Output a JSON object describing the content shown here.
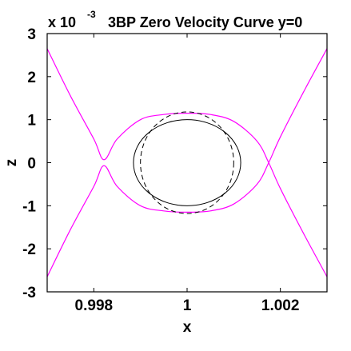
{
  "chart_data": {
    "type": "line",
    "title": "3BP Zero Velocity Curve y=0",
    "xlabel": "x",
    "ylabel": "z",
    "exponent": {
      "base": "x 10",
      "power": "-3"
    },
    "xlim": [
      0.997,
      1.003
    ],
    "ylim": [
      -3,
      3
    ],
    "x_ticks": [
      0.998,
      1,
      1.002
    ],
    "x_tick_labels": [
      "0.998",
      "1",
      "1.002"
    ],
    "y_ticks": [
      -3,
      -2,
      -1,
      0,
      1,
      2,
      3
    ],
    "y_tick_labels": [
      "-3",
      "-2",
      "-1",
      "0",
      "1",
      "2",
      "3"
    ],
    "grid": false,
    "series": [
      {
        "style": "solid-magenta",
        "color": "#ff00ff",
        "x": [
          0.997,
          0.9975,
          0.998,
          0.99822,
          0.9985,
          0.999,
          0.9995,
          1.0,
          1.0005,
          1.001,
          1.0015,
          1.00175,
          1.002,
          1.0025,
          1.003
        ],
        "y": [
          2.65,
          1.55,
          0.55,
          0.07,
          0.55,
          1.0,
          1.12,
          1.15,
          1.12,
          0.96,
          0.5,
          0.0,
          -0.6,
          -1.65,
          -2.65
        ]
      },
      {
        "style": "solid-magenta",
        "color": "#ff00ff",
        "x": [
          0.997,
          0.9975,
          0.998,
          0.99822,
          0.9985,
          0.999,
          0.9995,
          1.0,
          1.0005,
          1.001,
          1.0015,
          1.00175,
          1.002,
          1.0025,
          1.003
        ],
        "y": [
          -2.65,
          -1.55,
          -0.55,
          -0.07,
          -0.55,
          -1.0,
          -1.12,
          -1.15,
          -1.12,
          -0.96,
          -0.5,
          0.0,
          0.6,
          1.65,
          2.65
        ]
      },
      {
        "style": "solid-ellipse",
        "color": "#000000",
        "center": [
          1.0,
          0.0
        ],
        "rx": 0.00115,
        "rz": 1.0
      },
      {
        "style": "dashed-ellipse",
        "color": "#000000",
        "center": [
          1.0,
          0.0
        ],
        "rx": 0.001,
        "rz": 1.18
      }
    ]
  }
}
